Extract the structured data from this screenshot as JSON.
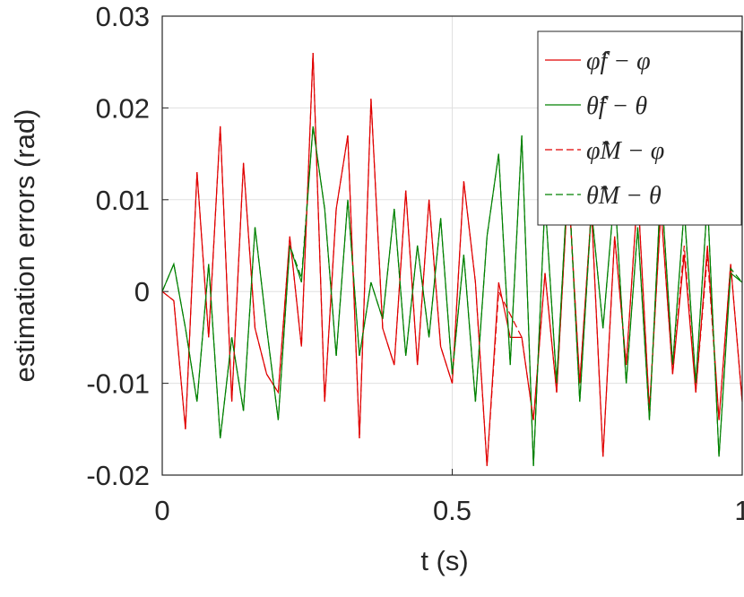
{
  "chart_data": {
    "type": "line",
    "xlabel": "t (s)",
    "ylabel": "estimation errors (rad)",
    "xlim": [
      0,
      1
    ],
    "ylim": [
      -0.02,
      0.03
    ],
    "xticks": [
      0,
      0.5,
      1
    ],
    "yticks": [
      -0.02,
      -0.01,
      0,
      0.01,
      0.02,
      0.03
    ],
    "grid": true,
    "legend": "upper right",
    "x": [
      0,
      0.02,
      0.04,
      0.06,
      0.08,
      0.1,
      0.12,
      0.14,
      0.16,
      0.18,
      0.2,
      0.22,
      0.24,
      0.26,
      0.28,
      0.3,
      0.32,
      0.34,
      0.36,
      0.38,
      0.4,
      0.42,
      0.44,
      0.46,
      0.48,
      0.5,
      0.52,
      0.54,
      0.56,
      0.58,
      0.6,
      0.62,
      0.64,
      0.66,
      0.68,
      0.7,
      0.72,
      0.74,
      0.76,
      0.78,
      0.8,
      0.82,
      0.84,
      0.86,
      0.88,
      0.9,
      0.92,
      0.94,
      0.96,
      0.98,
      1
    ],
    "series": [
      {
        "name": "φ̂f − φ",
        "color": "#e00000",
        "dash": false,
        "values": [
          0,
          -0.001,
          -0.015,
          0.013,
          -0.005,
          0.018,
          -0.012,
          0.014,
          -0.004,
          -0.009,
          -0.011,
          0.006,
          -0.006,
          0.026,
          -0.012,
          0.009,
          0.017,
          -0.016,
          0.021,
          -0.004,
          -0.008,
          0.011,
          -0.008,
          0.01,
          -0.006,
          -0.01,
          0.012,
          0.001,
          -0.019,
          0.001,
          -0.005,
          -0.005,
          -0.014,
          0.002,
          -0.011,
          0.012,
          -0.01,
          0.009,
          -0.018,
          0.006,
          -0.008,
          0.011,
          -0.013,
          0.009,
          -0.009,
          0.004,
          -0.011,
          0.005,
          -0.014,
          0.003,
          -0.012
        ]
      },
      {
        "name": "θ̂f − θ",
        "color": "#008000",
        "dash": false,
        "values": [
          0,
          0.003,
          -0.004,
          -0.012,
          0.003,
          -0.016,
          -0.005,
          -0.013,
          0.007,
          -0.004,
          -0.014,
          0.005,
          0.001,
          0.018,
          0.009,
          -0.007,
          0.01,
          -0.007,
          0.001,
          -0.003,
          0.009,
          -0.007,
          0.005,
          -0.005,
          0.008,
          -0.009,
          0.004,
          -0.012,
          0.006,
          0.015,
          -0.008,
          0.017,
          -0.019,
          0.01,
          -0.01,
          0.013,
          -0.012,
          0.009,
          -0.004,
          0.011,
          -0.01,
          0.007,
          -0.014,
          0.012,
          -0.008,
          0.009,
          -0.01,
          0.01,
          -0.018,
          0.002,
          0.001
        ]
      },
      {
        "name": "φ̂M − φ",
        "color": "#e00000",
        "dash": true,
        "values": [
          0,
          -0.001,
          -0.015,
          0.013,
          -0.005,
          0.018,
          -0.012,
          0.014,
          -0.004,
          -0.009,
          -0.011,
          0.006,
          -0.006,
          0.026,
          -0.012,
          0.009,
          0.017,
          -0.016,
          0.021,
          -0.004,
          -0.008,
          0.011,
          -0.008,
          0.01,
          -0.006,
          -0.01,
          0.012,
          0.001,
          -0.019,
          0.0,
          -0.0025,
          -0.005,
          -0.014,
          0.002,
          -0.011,
          0.012,
          -0.01,
          0.009,
          -0.018,
          0.006,
          -0.008,
          0.011,
          -0.013,
          0.009,
          -0.009,
          0.005,
          -0.011,
          0.004,
          -0.014,
          0.003,
          -0.012
        ]
      },
      {
        "name": "θ̂M − θ",
        "color": "#008000",
        "dash": true,
        "values": [
          0,
          0.003,
          -0.004,
          -0.012,
          0.003,
          -0.016,
          -0.005,
          -0.013,
          0.007,
          -0.004,
          -0.014,
          0.005,
          0.0015,
          0.018,
          0.009,
          -0.007,
          0.01,
          -0.007,
          0.001,
          -0.003,
          0.009,
          -0.007,
          0.005,
          -0.005,
          0.008,
          -0.009,
          0.004,
          -0.012,
          0.006,
          0.015,
          -0.008,
          0.017,
          -0.019,
          0.01,
          -0.01,
          0.013,
          -0.012,
          0.009,
          -0.004,
          0.011,
          -0.01,
          0.007,
          -0.014,
          0.012,
          -0.008,
          0.009,
          -0.01,
          0.01,
          -0.018,
          0.0025,
          0.001
        ]
      }
    ]
  }
}
